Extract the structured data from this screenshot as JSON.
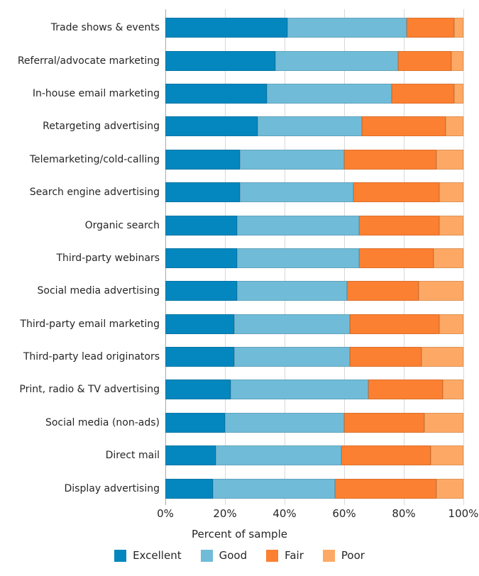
{
  "chart_data": {
    "type": "bar",
    "orientation": "horizontal",
    "stacked": true,
    "title": "",
    "xlabel": "Percent of sample",
    "ylabel": "",
    "xlim": [
      0,
      100
    ],
    "grid": true,
    "legend_position": "bottom",
    "x_ticks": [
      "0%",
      "20%",
      "40%",
      "60%",
      "80%",
      "100%"
    ],
    "x_tick_values": [
      0,
      20,
      40,
      60,
      80,
      100
    ],
    "categories": [
      "Trade shows & events",
      "Referral/advocate marketing",
      "In-house email marketing",
      "Retargeting advertising",
      "Telemarketing/cold-calling",
      "Search engine advertising",
      "Organic search",
      "Third-party webinars",
      "Social media advertising",
      "Third-party email marketing",
      "Third-party lead originators",
      "Print, radio & TV advertising",
      "Social media (non-ads)",
      "Direct mail",
      "Display advertising"
    ],
    "series": [
      {
        "name": "Excellent",
        "color": "#0487be",
        "values": [
          41,
          37,
          34,
          31,
          25,
          25,
          24,
          24,
          24,
          23,
          23,
          22,
          20,
          17,
          16
        ]
      },
      {
        "name": "Good",
        "color": "#70bcd8",
        "values": [
          40,
          41,
          42,
          35,
          35,
          38,
          41,
          41,
          37,
          39,
          39,
          46,
          40,
          42,
          41
        ]
      },
      {
        "name": "Fair",
        "color": "#fc8032",
        "values": [
          16,
          18,
          21,
          28,
          31,
          29,
          27,
          25,
          24,
          30,
          24,
          25,
          27,
          30,
          34
        ]
      },
      {
        "name": "Poor",
        "color": "#fda965",
        "values": [
          3,
          4,
          3,
          6,
          9,
          8,
          8,
          10,
          15,
          8,
          14,
          7,
          13,
          11,
          9
        ]
      }
    ]
  },
  "style": {
    "grid_color": "#d8d8d8",
    "zero_line_color": "#aaaaaa",
    "text_color": "#262626",
    "background": "#ffffff"
  }
}
